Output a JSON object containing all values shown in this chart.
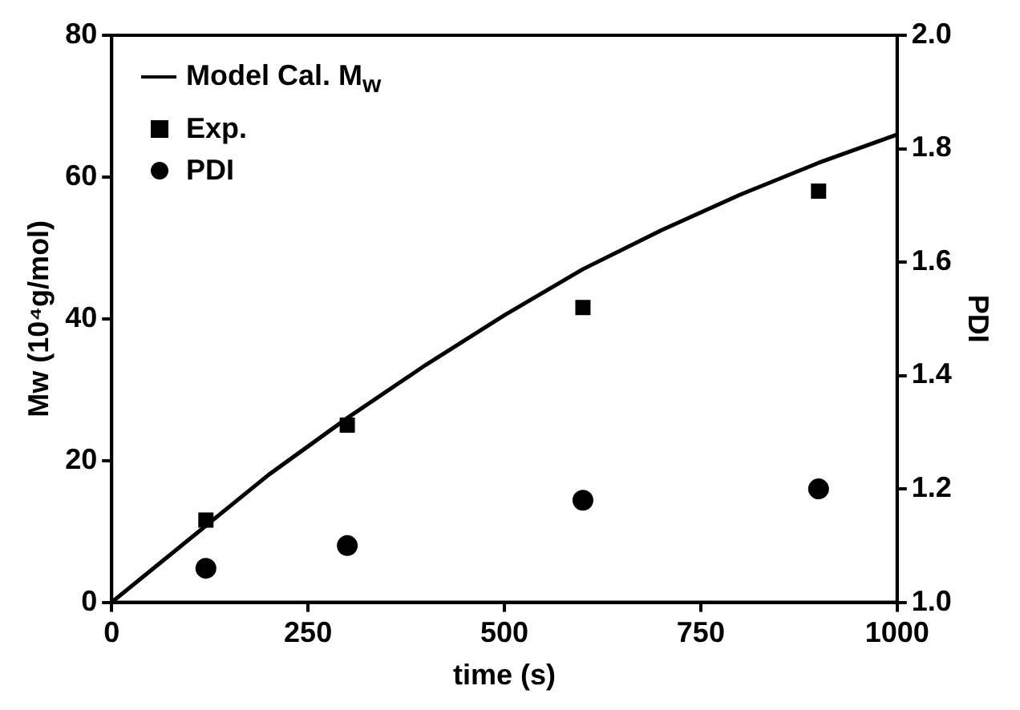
{
  "chart_data": {
    "type": "line",
    "xlabel": "time (s)",
    "ylabel": "Mw (10⁴g/mol)",
    "y2label": "PDI",
    "xlim": [
      0,
      1000
    ],
    "xticks": [
      0,
      250,
      500,
      750,
      1000
    ],
    "ylim": [
      0,
      80
    ],
    "yticks": [
      0,
      20,
      40,
      60,
      80
    ],
    "y2lim": [
      1.0,
      2.0
    ],
    "y2ticks": [
      {
        "value": 1.0,
        "label": "1.0"
      },
      1.2,
      1.4,
      1.6,
      1.8,
      {
        "value": 2.0,
        "label": "2.0"
      }
    ],
    "grid": false,
    "legend": "top left",
    "series": [
      {
        "name": "Model Cal. M$_{w}$",
        "color": "#000000",
        "marker": "none",
        "line_style": "solid",
        "x": [
          0,
          100,
          200,
          300,
          400,
          500,
          600,
          700,
          800,
          900,
          1000
        ],
        "values": [
          0,
          9,
          18,
          26,
          33.5,
          40.5,
          47,
          52.5,
          57.5,
          62,
          66
        ]
      },
      {
        "name": "Exp.",
        "type": "scatter",
        "color": "#000000",
        "marker": "square",
        "x": [
          120,
          300,
          600,
          900
        ],
        "values": [
          11.6,
          25,
          41.6,
          58
        ]
      },
      {
        "name": "PDI",
        "type": "scatter",
        "color": "#000000",
        "marker": "circle",
        "axis": "y2",
        "x": [
          120,
          300,
          600,
          900
        ],
        "values": [
          1.06,
          1.1,
          1.18,
          1.2
        ]
      }
    ]
  }
}
